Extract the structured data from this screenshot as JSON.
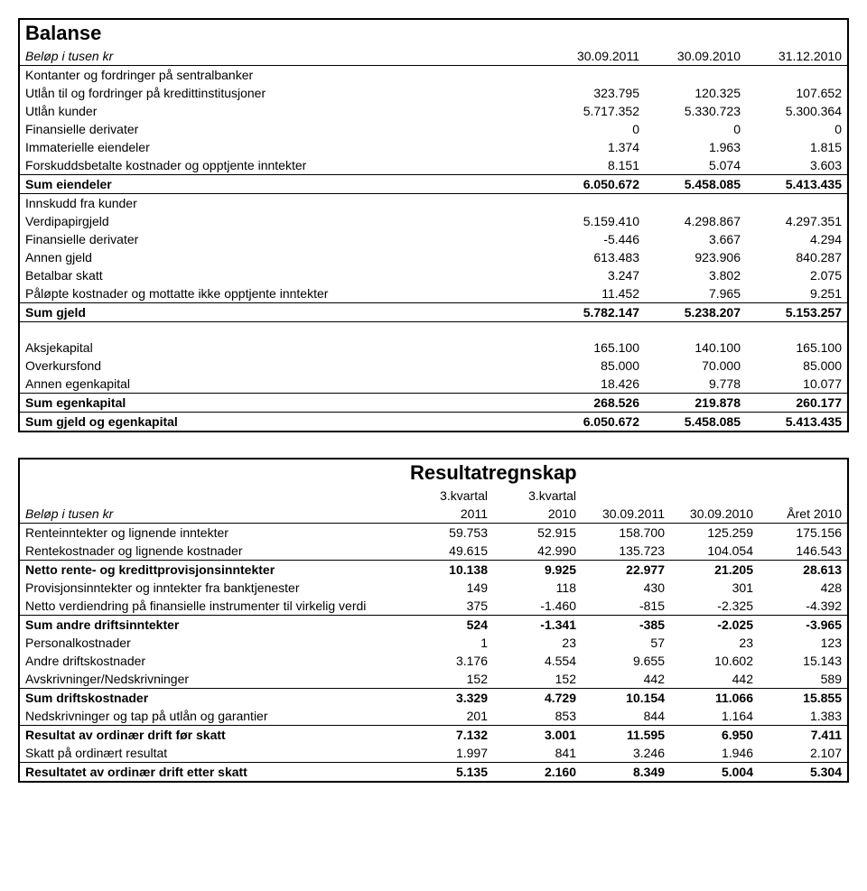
{
  "balance": {
    "title": "Balanse",
    "unit_label": "Beløp i tusen kr",
    "col_headers": [
      "30.09.2011",
      "30.09.2010",
      "31.12.2010"
    ],
    "rows_top": [
      {
        "label": "Kontanter og fordringer på sentralbanker",
        "v": [
          "",
          "",
          ""
        ]
      },
      {
        "label": "Utlån til og fordringer på kredittinstitusjoner",
        "v": [
          "323.795",
          "120.325",
          "107.652"
        ]
      },
      {
        "label": "Utlån kunder",
        "v": [
          "5.717.352",
          "5.330.723",
          "5.300.364"
        ]
      },
      {
        "label": "Finansielle derivater",
        "v": [
          "0",
          "0",
          "0"
        ]
      },
      {
        "label": "Immaterielle eiendeler",
        "v": [
          "1.374",
          "1.963",
          "1.815"
        ]
      },
      {
        "label": "Forskuddsbetalte kostnader og opptjente inntekter",
        "v": [
          "8.151",
          "5.074",
          "3.603"
        ]
      }
    ],
    "sum_assets": {
      "label": "Sum eiendeler",
      "v": [
        "6.050.672",
        "5.458.085",
        "5.413.435"
      ]
    },
    "rows_mid": [
      {
        "label": "Innskudd fra kunder",
        "v": [
          "",
          "",
          ""
        ]
      },
      {
        "label": "Verdipapirgjeld",
        "v": [
          "5.159.410",
          "4.298.867",
          "4.297.351"
        ]
      },
      {
        "label": "Finansielle derivater",
        "v": [
          "-5.446",
          "3.667",
          "4.294"
        ]
      },
      {
        "label": "Annen gjeld",
        "v": [
          "613.483",
          "923.906",
          "840.287"
        ]
      },
      {
        "label": "Betalbar skatt",
        "v": [
          "3.247",
          "3.802",
          "2.075"
        ]
      },
      {
        "label": "Påløpte kostnader og mottatte ikke opptjente inntekter",
        "v": [
          "11.452",
          "7.965",
          "9.251"
        ]
      }
    ],
    "sum_debt": {
      "label": "Sum gjeld",
      "v": [
        "5.782.147",
        "5.238.207",
        "5.153.257"
      ]
    },
    "rows_equity": [
      {
        "label": "Aksjekapital",
        "v": [
          "165.100",
          "140.100",
          "165.100"
        ]
      },
      {
        "label": "Overkursfond",
        "v": [
          "85.000",
          "70.000",
          "85.000"
        ]
      },
      {
        "label": "Annen egenkapital",
        "v": [
          "18.426",
          "9.778",
          "10.077"
        ]
      }
    ],
    "sum_equity": {
      "label": "Sum egenkapital",
      "v": [
        "268.526",
        "219.878",
        "260.177"
      ]
    },
    "sum_total": {
      "label": "Sum gjeld og egenkapital",
      "v": [
        "6.050.672",
        "5.458.085",
        "5.413.435"
      ]
    }
  },
  "income": {
    "title": "Resultatregnskap",
    "unit_label": "Beløp i tusen kr",
    "super_headers": [
      "3.kvartal",
      "3.kvartal",
      "",
      "",
      ""
    ],
    "col_headers": [
      "2011",
      "2010",
      "30.09.2011",
      "30.09.2010",
      "Året 2010"
    ],
    "rows": [
      {
        "label": "Renteinntekter og lignende inntekter",
        "v": [
          "59.753",
          "52.915",
          "158.700",
          "125.259",
          "175.156"
        ],
        "bold": false
      },
      {
        "label": "Rentekostnader og lignende kostnader",
        "v": [
          "49.615",
          "42.990",
          "135.723",
          "104.054",
          "146.543"
        ],
        "bold": false,
        "under": true
      },
      {
        "label": "Netto rente- og kredittprovisjonsinntekter",
        "v": [
          "10.138",
          "9.925",
          "22.977",
          "21.205",
          "28.613"
        ],
        "bold": true
      },
      {
        "label": "Provisjonsinntekter og inntekter fra banktjenester",
        "v": [
          "149",
          "118",
          "430",
          "301",
          "428"
        ],
        "bold": false
      },
      {
        "label": "Netto verdiendring på finansielle instrumenter til virkelig verdi",
        "v": [
          "375",
          "-1.460",
          "-815",
          "-2.325",
          "-4.392"
        ],
        "bold": false,
        "under": true
      },
      {
        "label": "Sum andre driftsinntekter",
        "v": [
          "524",
          "-1.341",
          "-385",
          "-2.025",
          "-3.965"
        ],
        "bold": true
      },
      {
        "label": "Personalkostnader",
        "v": [
          "1",
          "23",
          "57",
          "23",
          "123"
        ],
        "bold": false
      },
      {
        "label": "Andre driftskostnader",
        "v": [
          "3.176",
          "4.554",
          "9.655",
          "10.602",
          "15.143"
        ],
        "bold": false
      },
      {
        "label": "Avskrivninger/Nedskrivninger",
        "v": [
          "152",
          "152",
          "442",
          "442",
          "589"
        ],
        "bold": false,
        "under": true
      },
      {
        "label": "Sum driftskostnader",
        "v": [
          "3.329",
          "4.729",
          "10.154",
          "11.066",
          "15.855"
        ],
        "bold": true
      },
      {
        "label": "Nedskrivninger og tap på utlån og garantier",
        "v": [
          "201",
          "853",
          "844",
          "1.164",
          "1.383"
        ],
        "bold": false,
        "under": true
      },
      {
        "label": "Resultat av ordinær drift før skatt",
        "v": [
          "7.132",
          "3.001",
          "11.595",
          "6.950",
          "7.411"
        ],
        "bold": true
      },
      {
        "label": "Skatt på ordinært resultat",
        "v": [
          "1.997",
          "841",
          "3.246",
          "1.946",
          "2.107"
        ],
        "bold": false,
        "under": true
      },
      {
        "label": "Resultatet av ordinær drift etter skatt",
        "v": [
          "5.135",
          "2.160",
          "8.349",
          "5.004",
          "5.304"
        ],
        "bold": true
      }
    ]
  }
}
